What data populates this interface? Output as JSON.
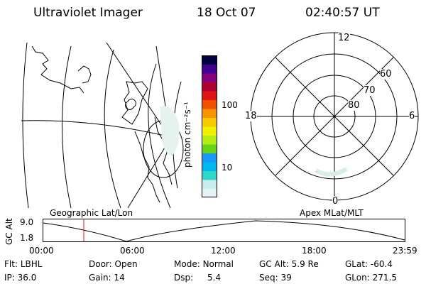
{
  "header": {
    "title": "Ultraviolet Imager",
    "date": "18 Oct 07",
    "time": "02:40:57 UT"
  },
  "colorbar": {
    "unit_label": "photon cm⁻²s⁻¹",
    "tick_100": "100",
    "tick_10": "10",
    "colors": [
      "#e4f4f4",
      "#c8ecec",
      "#2cd8c8",
      "#00b8f0",
      "#1898f8",
      "#64d414",
      "#b4ec14",
      "#f0f000",
      "#f8c800",
      "#f89400",
      "#f05000",
      "#e01414",
      "#b00030",
      "#84007c",
      "#440090",
      "#000040"
    ]
  },
  "polar": {
    "lat_labels": [
      "60",
      "70",
      "80"
    ],
    "mlt_labels": {
      "top": "12",
      "left": "18",
      "right": "6",
      "bottom": "0"
    }
  },
  "alt_plot": {
    "left_label": "Geographic Lat/Lon",
    "right_label": "Apex MLat/MLT",
    "y_label": "GC Alt",
    "y_max": "9.0",
    "y_min": "1.8",
    "x_ticks": [
      "00:00",
      "06:00",
      "12:00",
      "18:00",
      "23:59"
    ],
    "marker_color": "#e01414"
  },
  "info": {
    "flt": {
      "label": "Flt:",
      "value": "LBHL"
    },
    "door": {
      "label": "Door:",
      "value": "Open"
    },
    "mode": {
      "label": "Mode:",
      "value": "Normal"
    },
    "gcalt": {
      "label": "GC Alt:",
      "value": "5.9 Re"
    },
    "glat": {
      "label": "GLat:",
      "value": "-60.4"
    },
    "ip": {
      "label": "IP:",
      "value": "36.0"
    },
    "gain": {
      "label": "Gain:",
      "value": "14"
    },
    "dsp": {
      "label": "Dsp:",
      "value": "5.4"
    },
    "seq": {
      "label": "Seq:",
      "value": "39"
    },
    "glon": {
      "label": "GLon:",
      "value": "271.5"
    }
  }
}
